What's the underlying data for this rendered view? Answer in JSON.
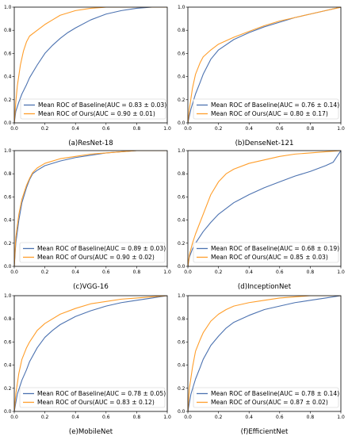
{
  "colors": {
    "baseline": "#4c72b0",
    "ours": "#ff9e2b"
  },
  "chart_data": [
    {
      "type": "line",
      "caption": "(a)ResNet-18",
      "xlim": [
        0,
        1
      ],
      "ylim": [
        0,
        1
      ],
      "xticks": [
        "0.0",
        "0.2",
        "0.4",
        "0.6",
        "0.8",
        "1.0"
      ],
      "yticks": [
        "0.0",
        "0.2",
        "0.4",
        "0.6",
        "0.8",
        "1.0"
      ],
      "grid": false,
      "legend_loc": "lower-center",
      "series": [
        {
          "name": "Mean ROC of Baseline(AUC = 0.83 ± 0.03)",
          "color_key": "baseline",
          "x": [
            0,
            0.01,
            0.03,
            0.05,
            0.08,
            0.1,
            0.15,
            0.2,
            0.25,
            0.3,
            0.35,
            0.4,
            0.5,
            0.6,
            0.7,
            0.8,
            0.9,
            1.0
          ],
          "y": [
            0,
            0.1,
            0.18,
            0.25,
            0.33,
            0.39,
            0.5,
            0.6,
            0.67,
            0.73,
            0.78,
            0.82,
            0.89,
            0.94,
            0.97,
            0.99,
            1.0,
            1.0
          ]
        },
        {
          "name": "Mean ROC of Ours(AUC = 0.90 ± 0.01)",
          "color_key": "ours",
          "x": [
            0,
            0.01,
            0.02,
            0.04,
            0.06,
            0.08,
            0.1,
            0.15,
            0.2,
            0.25,
            0.3,
            0.4,
            0.5,
            0.6,
            0.8,
            1.0
          ],
          "y": [
            0,
            0.18,
            0.32,
            0.5,
            0.62,
            0.7,
            0.75,
            0.8,
            0.85,
            0.89,
            0.93,
            0.97,
            0.99,
            1.0,
            1.0,
            1.0
          ]
        }
      ]
    },
    {
      "type": "line",
      "caption": "(b)DenseNet-121",
      "xlim": [
        0,
        1
      ],
      "ylim": [
        0,
        1
      ],
      "xticks": [
        "0.0",
        "0.2",
        "0.4",
        "0.6",
        "0.8",
        "1.0"
      ],
      "yticks": [
        "0.0",
        "0.2",
        "0.4",
        "0.6",
        "0.8",
        "1.0"
      ],
      "grid": false,
      "legend_loc": "lower-right",
      "series": [
        {
          "name": "Mean ROC of Baseline(AUC = 0.76 ± 0.14)",
          "color_key": "baseline",
          "x": [
            0,
            0.02,
            0.05,
            0.08,
            0.1,
            0.15,
            0.2,
            0.3,
            0.4,
            0.5,
            0.6,
            0.7,
            0.8,
            0.9,
            1.0
          ],
          "y": [
            0,
            0.12,
            0.25,
            0.35,
            0.42,
            0.55,
            0.63,
            0.72,
            0.78,
            0.83,
            0.87,
            0.91,
            0.94,
            0.97,
            1.0
          ]
        },
        {
          "name": "Mean ROC of Ours(AUC = 0.80 ± 0.17)",
          "color_key": "ours",
          "x": [
            0,
            0.01,
            0.03,
            0.05,
            0.08,
            0.1,
            0.15,
            0.2,
            0.3,
            0.4,
            0.5,
            0.6,
            0.7,
            0.8,
            0.9,
            1.0
          ],
          "y": [
            0,
            0.12,
            0.3,
            0.42,
            0.52,
            0.57,
            0.63,
            0.68,
            0.74,
            0.79,
            0.84,
            0.88,
            0.91,
            0.94,
            0.97,
            1.0
          ]
        }
      ]
    },
    {
      "type": "line",
      "caption": "(c)VGG-16",
      "xlim": [
        0,
        1
      ],
      "ylim": [
        0,
        1
      ],
      "xticks": [
        "0.0",
        "0.2",
        "0.4",
        "0.6",
        "0.8",
        "1.0"
      ],
      "yticks": [
        "0.0",
        "0.2",
        "0.4",
        "0.6",
        "0.8",
        "1.0"
      ],
      "grid": false,
      "legend_loc": "lower-right",
      "series": [
        {
          "name": "Mean ROC of Baseline(AUC = 0.89 ± 0.03)",
          "color_key": "baseline",
          "x": [
            0,
            0.01,
            0.03,
            0.05,
            0.08,
            0.1,
            0.12,
            0.15,
            0.2,
            0.3,
            0.4,
            0.5,
            0.6,
            0.7,
            0.8,
            1.0
          ],
          "y": [
            0,
            0.2,
            0.4,
            0.55,
            0.68,
            0.75,
            0.8,
            0.83,
            0.87,
            0.91,
            0.94,
            0.96,
            0.98,
            0.99,
            1.0,
            1.0
          ]
        },
        {
          "name": "Mean ROC of Ours(AUC = 0.90 ± 0.02)",
          "color_key": "ours",
          "x": [
            0,
            0.01,
            0.03,
            0.05,
            0.08,
            0.1,
            0.12,
            0.15,
            0.2,
            0.3,
            0.4,
            0.5,
            0.6,
            0.7,
            0.8,
            1.0
          ],
          "y": [
            0,
            0.25,
            0.45,
            0.58,
            0.7,
            0.76,
            0.81,
            0.85,
            0.89,
            0.93,
            0.95,
            0.97,
            0.98,
            0.99,
            1.0,
            1.0
          ]
        }
      ]
    },
    {
      "type": "line",
      "caption": "(d)InceptionNet",
      "xlim": [
        0,
        1
      ],
      "ylim": [
        0,
        1
      ],
      "xticks": [
        "0.0",
        "0.2",
        "0.4",
        "0.6",
        "0.8",
        "1.0"
      ],
      "yticks": [
        "0.0",
        "0.2",
        "0.4",
        "0.6",
        "0.8",
        "1.0"
      ],
      "grid": false,
      "legend_loc": "lower-right",
      "series": [
        {
          "name": "Mean ROC of Baseline(AUC = 0.68 ± 0.19)",
          "color_key": "baseline",
          "x": [
            0,
            0.01,
            0.03,
            0.05,
            0.1,
            0.15,
            0.2,
            0.3,
            0.4,
            0.5,
            0.6,
            0.7,
            0.8,
            0.9,
            0.95,
            1.0
          ],
          "y": [
            0,
            0.08,
            0.15,
            0.2,
            0.3,
            0.38,
            0.45,
            0.55,
            0.62,
            0.68,
            0.73,
            0.78,
            0.82,
            0.87,
            0.9,
            1.0
          ]
        },
        {
          "name": "Mean ROC of Ours(AUC = 0.85 ± 0.03)",
          "color_key": "ours",
          "x": [
            0,
            0.01,
            0.03,
            0.05,
            0.1,
            0.15,
            0.2,
            0.25,
            0.3,
            0.4,
            0.5,
            0.6,
            0.7,
            0.8,
            0.9,
            1.0
          ],
          "y": [
            0,
            0.1,
            0.2,
            0.28,
            0.45,
            0.62,
            0.73,
            0.8,
            0.84,
            0.89,
            0.92,
            0.95,
            0.97,
            0.98,
            0.99,
            1.0
          ]
        }
      ]
    },
    {
      "type": "line",
      "caption": "(e)MobileNet",
      "xlim": [
        0,
        1
      ],
      "ylim": [
        0,
        1
      ],
      "xticks": [
        "0.0",
        "0.2",
        "0.4",
        "0.6",
        "0.8",
        "1.0"
      ],
      "yticks": [
        "0.0",
        "0.2",
        "0.4",
        "0.6",
        "0.8",
        "1.0"
      ],
      "grid": false,
      "legend_loc": "lower-right",
      "series": [
        {
          "name": "Mean ROC of Baseline(AUC = 0.78 ± 0.05)",
          "color_key": "baseline",
          "x": [
            0,
            0.02,
            0.05,
            0.08,
            0.1,
            0.15,
            0.2,
            0.25,
            0.3,
            0.4,
            0.5,
            0.6,
            0.7,
            0.8,
            0.9,
            1.0
          ],
          "y": [
            0,
            0.15,
            0.27,
            0.36,
            0.43,
            0.55,
            0.64,
            0.7,
            0.75,
            0.82,
            0.87,
            0.91,
            0.94,
            0.96,
            0.98,
            1.0
          ]
        },
        {
          "name": "Mean ROC of Ours(AUC = 0.83 ± 0.12)",
          "color_key": "ours",
          "x": [
            0,
            0.01,
            0.03,
            0.05,
            0.08,
            0.1,
            0.15,
            0.2,
            0.3,
            0.4,
            0.5,
            0.6,
            0.7,
            0.8,
            0.9,
            1.0
          ],
          "y": [
            0,
            0.15,
            0.33,
            0.45,
            0.55,
            0.6,
            0.7,
            0.76,
            0.84,
            0.89,
            0.93,
            0.95,
            0.97,
            0.98,
            0.99,
            1.0
          ]
        }
      ]
    },
    {
      "type": "line",
      "caption": "(f)EfficientNet",
      "xlim": [
        0,
        1
      ],
      "ylim": [
        0,
        1
      ],
      "xticks": [
        "0.0",
        "0.2",
        "0.4",
        "0.6",
        "0.8",
        "1.0"
      ],
      "yticks": [
        "0.0",
        "0.2",
        "0.4",
        "0.6",
        "0.8",
        "1.0"
      ],
      "grid": false,
      "legend_loc": "lower-right",
      "series": [
        {
          "name": "Mean ROC of Baseline(AUC = 0.78 ± 0.14)",
          "color_key": "baseline",
          "x": [
            0,
            0.02,
            0.05,
            0.08,
            0.1,
            0.15,
            0.2,
            0.25,
            0.3,
            0.4,
            0.5,
            0.6,
            0.7,
            0.8,
            0.9,
            1.0
          ],
          "y": [
            0,
            0.15,
            0.28,
            0.38,
            0.45,
            0.57,
            0.65,
            0.72,
            0.77,
            0.83,
            0.88,
            0.91,
            0.94,
            0.96,
            0.98,
            1.0
          ]
        },
        {
          "name": "Mean ROC of Ours(AUC = 0.87 ± 0.02)",
          "color_key": "ours",
          "x": [
            0,
            0.01,
            0.03,
            0.05,
            0.08,
            0.1,
            0.15,
            0.2,
            0.25,
            0.3,
            0.4,
            0.5,
            0.6,
            0.7,
            0.8,
            0.9,
            1.0
          ],
          "y": [
            0,
            0.2,
            0.38,
            0.52,
            0.62,
            0.68,
            0.78,
            0.84,
            0.88,
            0.91,
            0.94,
            0.96,
            0.98,
            0.99,
            1.0,
            1.0,
            1.0
          ]
        }
      ]
    }
  ]
}
